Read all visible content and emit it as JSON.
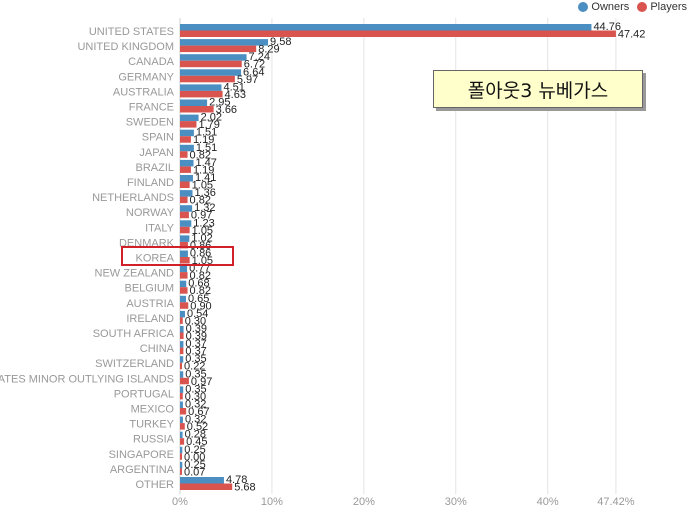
{
  "legend": {
    "owners_label": "Owners",
    "players_label": "Players",
    "owners_color": "#4a8ec2",
    "players_color": "#d9534f"
  },
  "annotation": {
    "title": "폴아웃3 뉴베가스"
  },
  "chart_data": {
    "type": "bar",
    "orientation": "horizontal",
    "categories": [
      "UNITED STATES",
      "UNITED KINGDOM",
      "CANADA",
      "GERMANY",
      "AUSTRALIA",
      "FRANCE",
      "SWEDEN",
      "SPAIN",
      "JAPAN",
      "BRAZIL",
      "FINLAND",
      "NETHERLANDS",
      "NORWAY",
      "ITALY",
      "DENMARK",
      "KOREA",
      "NEW ZEALAND",
      "BELGIUM",
      "AUSTRIA",
      "IRELAND",
      "SOUTH AFRICA",
      "CHINA",
      "SWITZERLAND",
      "UNITED STATES MINOR OUTLYING ISLANDS",
      "PORTUGAL",
      "MEXICO",
      "TURKEY",
      "RUSSIA",
      "SINGAPORE",
      "ARGENTINA",
      "OTHER"
    ],
    "series": [
      {
        "name": "Owners",
        "values": [
          44.76,
          9.58,
          7.24,
          6.64,
          4.51,
          2.95,
          2.02,
          1.51,
          1.51,
          1.47,
          1.41,
          1.36,
          1.32,
          1.23,
          1.02,
          0.86,
          0.77,
          0.68,
          0.65,
          0.54,
          0.39,
          0.37,
          0.35,
          0.35,
          0.35,
          0.32,
          0.32,
          0.28,
          0.25,
          0.25,
          4.78
        ],
        "labels": [
          "44.76",
          "9.58",
          "7.24",
          "6.64",
          "4.51",
          "2.95",
          "2.02",
          "1.51",
          "1.51",
          "1.47",
          "1.41",
          "1.36",
          "1.32",
          "1.23",
          "1.02",
          "0.86",
          "0.77",
          "0.68",
          "0.65",
          "0.54",
          "0.39",
          "0.37",
          "0.35",
          "0.35",
          "0.35",
          "0.32",
          "0.32",
          "0.28",
          "0.25",
          "0.25",
          "4.78"
        ]
      },
      {
        "name": "Players",
        "values": [
          47.42,
          8.29,
          6.72,
          5.97,
          4.63,
          3.66,
          1.79,
          1.19,
          0.82,
          1.19,
          1.05,
          0.82,
          0.97,
          1.05,
          0.86,
          1.05,
          0.82,
          0.82,
          0.9,
          0.3,
          0.39,
          0.37,
          0.22,
          0.97,
          0.3,
          0.67,
          0.52,
          0.45,
          0.0,
          0.07,
          5.68
        ],
        "labels": [
          "47.42",
          "8.29",
          "6.72",
          "5.97",
          "4.63",
          "3.66",
          "1.79",
          "1.19",
          "0.82",
          "1.19",
          "1.05",
          "0.82",
          "0.97",
          "1.05",
          "0.86",
          "1.05",
          "0.82",
          "0.82",
          "0.90",
          "0.30",
          "0.39",
          "0.37",
          "0.22",
          "0.97",
          "0.30",
          "0.67",
          "0.52",
          "0.45",
          "0.00",
          "0.07",
          "5.68"
        ]
      }
    ],
    "x_ticks": [
      "0%",
      "10%",
      "20%",
      "30%",
      "40%",
      "47.42%"
    ],
    "x_tick_values": [
      0,
      10,
      20,
      30,
      40,
      47.42
    ],
    "xlim": [
      0,
      52
    ],
    "highlighted_category": "KOREA",
    "grid": true,
    "legend_position": "top-right"
  }
}
